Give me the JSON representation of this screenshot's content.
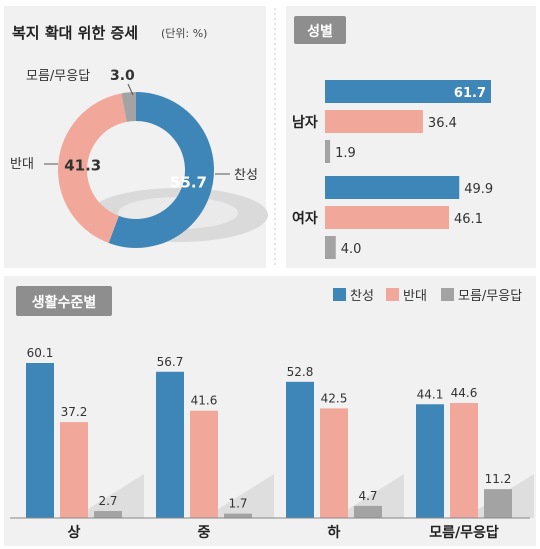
{
  "top_title": "복지 확대 위한 증세",
  "unit": "(단위: %)",
  "gender_header": "성별",
  "level_header": "생활수준별",
  "legend": [
    "찬성",
    "반대",
    "모름/무응답"
  ],
  "colors": {
    "favor": "#3f86b8",
    "oppose": "#f2a79b",
    "unknown": "#a3a3a3"
  },
  "chart_data": [
    {
      "type": "pie",
      "categories": [
        "찬성",
        "반대",
        "모름/무응답"
      ],
      "values": [
        55.7,
        41.3,
        3.0
      ]
    },
    {
      "type": "bar",
      "orientation": "horizontal",
      "categories": [
        "남자",
        "여자"
      ],
      "series": [
        {
          "name": "찬성",
          "values": [
            61.7,
            49.9
          ]
        },
        {
          "name": "반대",
          "values": [
            36.4,
            46.1
          ]
        },
        {
          "name": "모름/무응답",
          "values": [
            1.9,
            4.0
          ]
        }
      ]
    },
    {
      "type": "bar",
      "categories": [
        "상",
        "중",
        "하",
        "모름/무응답"
      ],
      "series": [
        {
          "name": "찬성",
          "values": [
            60.1,
            56.7,
            52.8,
            44.1
          ]
        },
        {
          "name": "반대",
          "values": [
            37.2,
            41.6,
            42.5,
            44.6
          ]
        },
        {
          "name": "모름/무응답",
          "values": [
            2.7,
            1.7,
            4.7,
            11.2
          ]
        }
      ],
      "legend_position": "top-right"
    }
  ]
}
